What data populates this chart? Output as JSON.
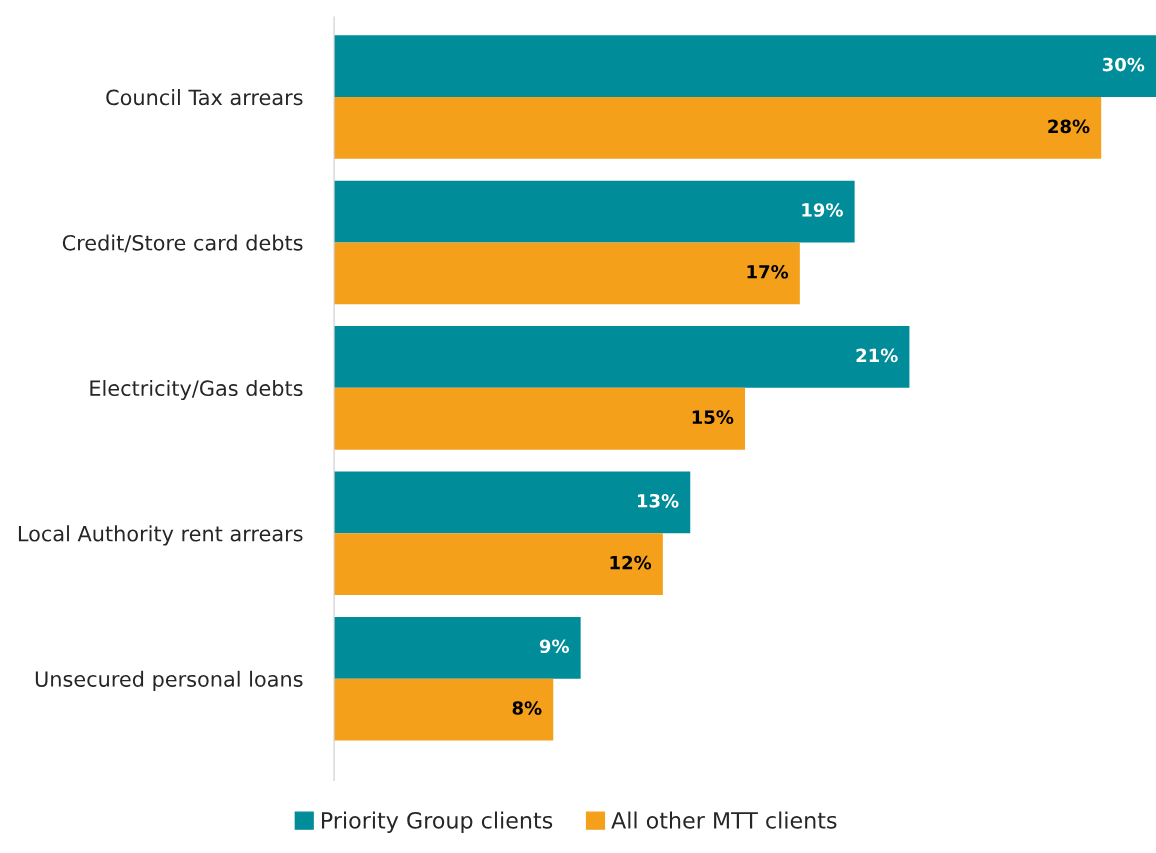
{
  "chart_data": {
    "type": "bar",
    "orientation": "horizontal",
    "categories": [
      "Council Tax arrears",
      "Credit/Store card debts",
      "Electricity/Gas debts",
      "Local Authority rent arrears",
      "Unsecured personal loans"
    ],
    "series": [
      {
        "name": "Priority Group clients",
        "color": "#008c99",
        "values": [
          30,
          19,
          21,
          13,
          9
        ],
        "value_labels": [
          "30%",
          "19%",
          "21%",
          "13%",
          "9%"
        ]
      },
      {
        "name": "All other MTT clients",
        "color": "#f5a01a",
        "values": [
          28,
          17,
          15,
          12,
          8
        ],
        "value_labels": [
          "28%",
          "17%",
          "15%",
          "12%",
          "8%"
        ]
      }
    ],
    "legend": "bottom",
    "grid": false
  }
}
